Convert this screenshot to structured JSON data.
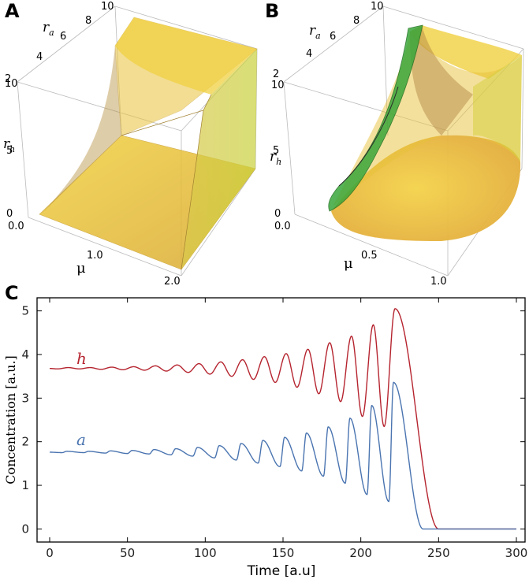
{
  "panels": {
    "A": {
      "letter": "A",
      "ra_ticks": [
        "2",
        "4",
        "6",
        "8",
        "10"
      ],
      "rh_ticks": [
        "10",
        "5",
        "0"
      ],
      "mu_ticks": [
        "0.0",
        "1.0",
        "2.0"
      ],
      "axis_ra": "r",
      "axis_ra_sub": "a",
      "axis_rh": "r",
      "axis_rh_sub": "h",
      "axis_mu": "μ",
      "surface_color": "#e8c23a"
    },
    "B": {
      "letter": "B",
      "ra_ticks": [
        "2",
        "4",
        "6",
        "8",
        "10"
      ],
      "rh_ticks": [
        "10",
        "5",
        "0"
      ],
      "mu_ticks": [
        "0.0",
        "0.5",
        "1.0"
      ],
      "axis_ra": "r",
      "axis_ra_sub": "a",
      "axis_rh": "r",
      "axis_rh_sub": "h",
      "axis_mu": "μ",
      "surface_color": "#e8c23a",
      "region_color": "#3aa63a"
    },
    "C": {
      "letter": "C"
    }
  },
  "chart_data": [
    {
      "type": "line",
      "panel": "C",
      "xlabel": "Time [a.u]",
      "ylabel": "Concentration [a.u.]",
      "xlim": [
        0,
        300
      ],
      "ylim": [
        -0.3,
        5.3
      ],
      "xticks": [
        "0",
        "50",
        "100",
        "150",
        "200",
        "250",
        "300"
      ],
      "yticks": [
        "0",
        "1",
        "2",
        "3",
        "4",
        "5"
      ],
      "series": [
        {
          "name": "h",
          "color": "#b5242f",
          "baseline": 3.68,
          "peaks": [
            [
              222,
              5.05
            ],
            [
              208,
              4.68
            ],
            [
              194,
              4.42
            ],
            [
              180,
              4.27
            ],
            [
              166,
              4.12
            ],
            [
              152,
              4.02
            ],
            [
              138,
              3.95
            ],
            [
              124,
              3.88
            ],
            [
              110,
              3.83
            ],
            [
              96,
              3.79
            ],
            [
              82,
              3.76
            ],
            [
              68,
              3.74
            ],
            [
              54,
              3.72
            ],
            [
              40,
              3.71
            ],
            [
              26,
              3.7
            ],
            [
              12,
              3.7
            ]
          ],
          "troughs": [
            [
              215,
              2.35
            ],
            [
              201,
              2.58
            ],
            [
              187,
              2.92
            ],
            [
              173,
              3.1
            ],
            [
              159,
              3.25
            ],
            [
              145,
              3.36
            ],
            [
              131,
              3.43
            ],
            [
              117,
              3.5
            ],
            [
              103,
              3.55
            ],
            [
              89,
              3.59
            ],
            [
              75,
              3.62
            ],
            [
              61,
              3.64
            ],
            [
              47,
              3.65
            ],
            [
              33,
              3.66
            ],
            [
              19,
              3.67
            ],
            [
              5,
              3.67
            ]
          ],
          "decay_end": [
            250,
            0.0
          ],
          "x_end": 300
        },
        {
          "name": "a",
          "color": "#4a74b0",
          "baseline": 1.76,
          "peaks": [
            [
              221,
              3.36
            ],
            [
              207,
              2.83
            ],
            [
              193,
              2.54
            ],
            [
              179,
              2.34
            ],
            [
              165,
              2.2
            ],
            [
              151,
              2.1
            ],
            [
              137,
              2.03
            ],
            [
              123,
              1.96
            ],
            [
              109,
              1.91
            ],
            [
              95,
              1.87
            ],
            [
              81,
              1.84
            ],
            [
              67,
              1.82
            ],
            [
              53,
              1.8
            ],
            [
              39,
              1.79
            ],
            [
              25,
              1.78
            ],
            [
              11,
              1.78
            ]
          ],
          "troughs": [
            [
              218,
              0.63
            ],
            [
              204,
              0.79
            ],
            [
              190,
              1.05
            ],
            [
              176,
              1.21
            ],
            [
              162,
              1.33
            ],
            [
              148,
              1.43
            ],
            [
              134,
              1.51
            ],
            [
              120,
              1.58
            ],
            [
              106,
              1.63
            ],
            [
              92,
              1.67
            ],
            [
              78,
              1.7
            ],
            [
              64,
              1.72
            ],
            [
              50,
              1.73
            ],
            [
              36,
              1.74
            ],
            [
              22,
              1.75
            ],
            [
              8,
              1.75
            ]
          ],
          "decay_end": [
            240,
            0.0
          ],
          "x_end": 300
        }
      ]
    }
  ]
}
